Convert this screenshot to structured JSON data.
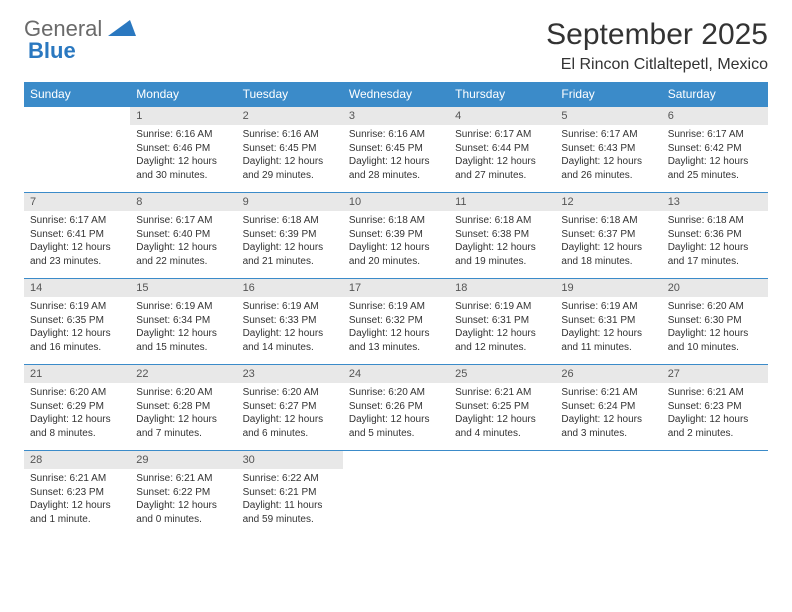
{
  "logo": {
    "word1": "General",
    "word2": "Blue"
  },
  "title": "September 2025",
  "location": "El Rincon Citlaltepetl, Mexico",
  "colors": {
    "header_bg": "#3b8bc9",
    "header_text": "#ffffff",
    "daynum_bg": "#e8e8e8",
    "border": "#3b8bc9",
    "text": "#333333",
    "logo_gray": "#6a6a6a",
    "logo_blue": "#2a78c0"
  },
  "weekdays": [
    "Sunday",
    "Monday",
    "Tuesday",
    "Wednesday",
    "Thursday",
    "Friday",
    "Saturday"
  ],
  "weeks": [
    [
      null,
      {
        "n": "1",
        "sr": "Sunrise: 6:16 AM",
        "ss": "Sunset: 6:46 PM",
        "d1": "Daylight: 12 hours",
        "d2": "and 30 minutes."
      },
      {
        "n": "2",
        "sr": "Sunrise: 6:16 AM",
        "ss": "Sunset: 6:45 PM",
        "d1": "Daylight: 12 hours",
        "d2": "and 29 minutes."
      },
      {
        "n": "3",
        "sr": "Sunrise: 6:16 AM",
        "ss": "Sunset: 6:45 PM",
        "d1": "Daylight: 12 hours",
        "d2": "and 28 minutes."
      },
      {
        "n": "4",
        "sr": "Sunrise: 6:17 AM",
        "ss": "Sunset: 6:44 PM",
        "d1": "Daylight: 12 hours",
        "d2": "and 27 minutes."
      },
      {
        "n": "5",
        "sr": "Sunrise: 6:17 AM",
        "ss": "Sunset: 6:43 PM",
        "d1": "Daylight: 12 hours",
        "d2": "and 26 minutes."
      },
      {
        "n": "6",
        "sr": "Sunrise: 6:17 AM",
        "ss": "Sunset: 6:42 PM",
        "d1": "Daylight: 12 hours",
        "d2": "and 25 minutes."
      }
    ],
    [
      {
        "n": "7",
        "sr": "Sunrise: 6:17 AM",
        "ss": "Sunset: 6:41 PM",
        "d1": "Daylight: 12 hours",
        "d2": "and 23 minutes."
      },
      {
        "n": "8",
        "sr": "Sunrise: 6:17 AM",
        "ss": "Sunset: 6:40 PM",
        "d1": "Daylight: 12 hours",
        "d2": "and 22 minutes."
      },
      {
        "n": "9",
        "sr": "Sunrise: 6:18 AM",
        "ss": "Sunset: 6:39 PM",
        "d1": "Daylight: 12 hours",
        "d2": "and 21 minutes."
      },
      {
        "n": "10",
        "sr": "Sunrise: 6:18 AM",
        "ss": "Sunset: 6:39 PM",
        "d1": "Daylight: 12 hours",
        "d2": "and 20 minutes."
      },
      {
        "n": "11",
        "sr": "Sunrise: 6:18 AM",
        "ss": "Sunset: 6:38 PM",
        "d1": "Daylight: 12 hours",
        "d2": "and 19 minutes."
      },
      {
        "n": "12",
        "sr": "Sunrise: 6:18 AM",
        "ss": "Sunset: 6:37 PM",
        "d1": "Daylight: 12 hours",
        "d2": "and 18 minutes."
      },
      {
        "n": "13",
        "sr": "Sunrise: 6:18 AM",
        "ss": "Sunset: 6:36 PM",
        "d1": "Daylight: 12 hours",
        "d2": "and 17 minutes."
      }
    ],
    [
      {
        "n": "14",
        "sr": "Sunrise: 6:19 AM",
        "ss": "Sunset: 6:35 PM",
        "d1": "Daylight: 12 hours",
        "d2": "and 16 minutes."
      },
      {
        "n": "15",
        "sr": "Sunrise: 6:19 AM",
        "ss": "Sunset: 6:34 PM",
        "d1": "Daylight: 12 hours",
        "d2": "and 15 minutes."
      },
      {
        "n": "16",
        "sr": "Sunrise: 6:19 AM",
        "ss": "Sunset: 6:33 PM",
        "d1": "Daylight: 12 hours",
        "d2": "and 14 minutes."
      },
      {
        "n": "17",
        "sr": "Sunrise: 6:19 AM",
        "ss": "Sunset: 6:32 PM",
        "d1": "Daylight: 12 hours",
        "d2": "and 13 minutes."
      },
      {
        "n": "18",
        "sr": "Sunrise: 6:19 AM",
        "ss": "Sunset: 6:31 PM",
        "d1": "Daylight: 12 hours",
        "d2": "and 12 minutes."
      },
      {
        "n": "19",
        "sr": "Sunrise: 6:19 AM",
        "ss": "Sunset: 6:31 PM",
        "d1": "Daylight: 12 hours",
        "d2": "and 11 minutes."
      },
      {
        "n": "20",
        "sr": "Sunrise: 6:20 AM",
        "ss": "Sunset: 6:30 PM",
        "d1": "Daylight: 12 hours",
        "d2": "and 10 minutes."
      }
    ],
    [
      {
        "n": "21",
        "sr": "Sunrise: 6:20 AM",
        "ss": "Sunset: 6:29 PM",
        "d1": "Daylight: 12 hours",
        "d2": "and 8 minutes."
      },
      {
        "n": "22",
        "sr": "Sunrise: 6:20 AM",
        "ss": "Sunset: 6:28 PM",
        "d1": "Daylight: 12 hours",
        "d2": "and 7 minutes."
      },
      {
        "n": "23",
        "sr": "Sunrise: 6:20 AM",
        "ss": "Sunset: 6:27 PM",
        "d1": "Daylight: 12 hours",
        "d2": "and 6 minutes."
      },
      {
        "n": "24",
        "sr": "Sunrise: 6:20 AM",
        "ss": "Sunset: 6:26 PM",
        "d1": "Daylight: 12 hours",
        "d2": "and 5 minutes."
      },
      {
        "n": "25",
        "sr": "Sunrise: 6:21 AM",
        "ss": "Sunset: 6:25 PM",
        "d1": "Daylight: 12 hours",
        "d2": "and 4 minutes."
      },
      {
        "n": "26",
        "sr": "Sunrise: 6:21 AM",
        "ss": "Sunset: 6:24 PM",
        "d1": "Daylight: 12 hours",
        "d2": "and 3 minutes."
      },
      {
        "n": "27",
        "sr": "Sunrise: 6:21 AM",
        "ss": "Sunset: 6:23 PM",
        "d1": "Daylight: 12 hours",
        "d2": "and 2 minutes."
      }
    ],
    [
      {
        "n": "28",
        "sr": "Sunrise: 6:21 AM",
        "ss": "Sunset: 6:23 PM",
        "d1": "Daylight: 12 hours",
        "d2": "and 1 minute."
      },
      {
        "n": "29",
        "sr": "Sunrise: 6:21 AM",
        "ss": "Sunset: 6:22 PM",
        "d1": "Daylight: 12 hours",
        "d2": "and 0 minutes."
      },
      {
        "n": "30",
        "sr": "Sunrise: 6:22 AM",
        "ss": "Sunset: 6:21 PM",
        "d1": "Daylight: 11 hours",
        "d2": "and 59 minutes."
      },
      null,
      null,
      null,
      null
    ]
  ]
}
